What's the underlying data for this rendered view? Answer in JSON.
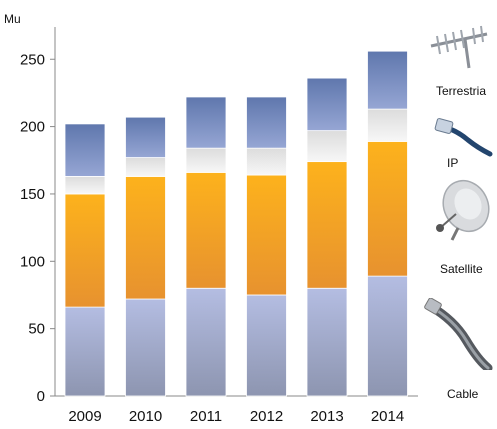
{
  "chart_data": {
    "type": "bar",
    "stacked": true,
    "unit": "Mu",
    "categories": [
      "2009",
      "2010",
      "2011",
      "2012",
      "2013",
      "2014"
    ],
    "y_ticks": [
      "0",
      "50",
      "100",
      "150",
      "200",
      "250"
    ],
    "ylim": [
      0,
      270
    ],
    "grid": false,
    "legend_position": "right",
    "series": [
      {
        "name": "Cable",
        "values": [
          66,
          72,
          80,
          75,
          80,
          89
        ]
      },
      {
        "name": "Satellite",
        "values": [
          84,
          91,
          86,
          89,
          94,
          100
        ]
      },
      {
        "name": "IP",
        "values": [
          13,
          14,
          18,
          20,
          23,
          24
        ]
      },
      {
        "name": "Terrestria",
        "values": [
          39,
          30,
          38,
          38,
          39,
          43
        ]
      }
    ],
    "colors": {
      "cable_top": "#b4bde2",
      "cable_bottom": "#8d95b0",
      "satellite_top": "#fdb21c",
      "satellite_bottom": "#e7922f",
      "ip_top": "#dcdcdc",
      "ip_bottom": "#f7f7f7",
      "terrestria_top": "#5f77ad",
      "terrestria_bottom": "#96a6d4"
    }
  },
  "legend_icons": [
    "antenna-icon",
    "ethernet-plug-icon",
    "satellite-dish-icon",
    "coax-cable-icon"
  ]
}
